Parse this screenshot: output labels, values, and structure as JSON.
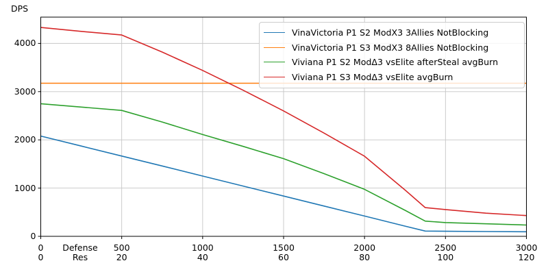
{
  "chart_data": {
    "type": "line",
    "title": "",
    "ylabel": "DPS",
    "xlabel_line1": "Defense",
    "xlabel_line2": "Res",
    "grid": true,
    "legend_position": "upper right",
    "xlim": [
      0,
      3000
    ],
    "ylim": [
      0,
      4545
    ],
    "x_ticks_defense": [
      0,
      500,
      1000,
      1500,
      2000,
      2500,
      3000
    ],
    "x_ticks_res": [
      0,
      20,
      40,
      60,
      80,
      100,
      120
    ],
    "y_ticks": [
      0,
      1000,
      2000,
      3000,
      4000
    ],
    "series": [
      {
        "name": "VinaVictoria P1 S2 ModX3 3Allies NotBlocking",
        "color": "#1f77b4",
        "points": [
          [
            0,
            2080
          ],
          [
            250,
            1872
          ],
          [
            500,
            1665
          ],
          [
            750,
            1458
          ],
          [
            1000,
            1250
          ],
          [
            1250,
            1042
          ],
          [
            1500,
            835
          ],
          [
            1750,
            628
          ],
          [
            2000,
            420
          ],
          [
            2250,
            212
          ],
          [
            2375,
            110
          ],
          [
            2500,
            105
          ],
          [
            2750,
            100
          ],
          [
            3000,
            95
          ]
        ]
      },
      {
        "name": "VinaVictoria P1 S3 ModX3 8Allies NotBlocking",
        "color": "#ff7f0e",
        "points": [
          [
            0,
            3175
          ],
          [
            500,
            3175
          ],
          [
            1000,
            3175
          ],
          [
            1500,
            3175
          ],
          [
            2000,
            3175
          ],
          [
            2500,
            3175
          ],
          [
            3000,
            3175
          ]
        ]
      },
      {
        "name": "Viviana P1 S2 ModΔ3 vsElite afterSteal avgBurn",
        "color": "#2ca02c",
        "points": [
          [
            0,
            2750
          ],
          [
            250,
            2680
          ],
          [
            500,
            2610
          ],
          [
            750,
            2370
          ],
          [
            1000,
            2110
          ],
          [
            1250,
            1865
          ],
          [
            1500,
            1610
          ],
          [
            1750,
            1300
          ],
          [
            2000,
            975
          ],
          [
            2250,
            540
          ],
          [
            2375,
            315
          ],
          [
            2500,
            285
          ],
          [
            2750,
            260
          ],
          [
            3000,
            235
          ]
        ]
      },
      {
        "name": "Viviana P1 S3 ModΔ3 vsElite avgBurn",
        "color": "#d62728",
        "points": [
          [
            0,
            4330
          ],
          [
            250,
            4250
          ],
          [
            500,
            4175
          ],
          [
            750,
            3820
          ],
          [
            1000,
            3440
          ],
          [
            1250,
            3030
          ],
          [
            1500,
            2600
          ],
          [
            1750,
            2140
          ],
          [
            2000,
            1660
          ],
          [
            2250,
            960
          ],
          [
            2375,
            595
          ],
          [
            2500,
            555
          ],
          [
            2750,
            480
          ],
          [
            3000,
            430
          ]
        ]
      }
    ]
  },
  "colors": {
    "grid": "#c6c6c6",
    "spine": "#000000",
    "tick": "#000000",
    "background": "#ffffff",
    "legend_border": "#cccccc"
  }
}
